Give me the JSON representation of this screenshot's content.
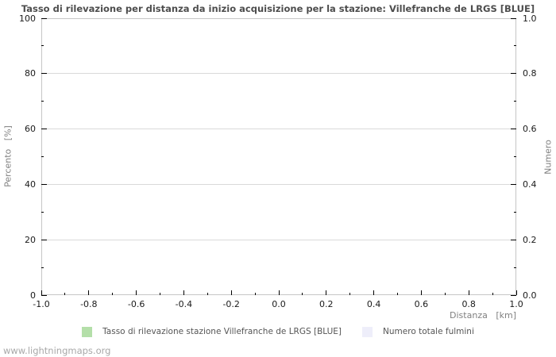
{
  "footer": {
    "watermark": "www.lightningmaps.org"
  },
  "chart_data": {
    "type": "bar",
    "title": "Tasso di rilevazione per distanza da inizio acquisizione per la stazione: Villefranche de LRGS [BLUE]",
    "xlabel": "Distanza   [km]",
    "ylabel_left": "Percento   [%]",
    "ylabel_right": "Numero",
    "x_axis": {
      "min": -1.0,
      "max": 1.0,
      "major_step": 0.2,
      "minor_step": 0.1,
      "tick_labels": [
        "-1.0",
        "-0.8",
        "-0.6",
        "-0.4",
        "-0.2",
        "0.0",
        "0.2",
        "0.4",
        "0.6",
        "0.8",
        "1.0"
      ]
    },
    "y_axis_left": {
      "min": 0,
      "max": 100,
      "major_step": 20,
      "minor_step": 10,
      "tick_labels": [
        "0",
        "20",
        "40",
        "60",
        "80",
        "100"
      ]
    },
    "y_axis_right": {
      "min": 0.0,
      "max": 1.0,
      "major_step": 0.2,
      "minor_step": 0.1,
      "tick_labels": [
        "0.0",
        "0.2",
        "0.4",
        "0.6",
        "0.8",
        "1.0"
      ]
    },
    "grid": "horizontal-major-only",
    "legend_position": "bottom-center",
    "series": [
      {
        "name": "Tasso di rilevazione stazione Villefranche de LRGS [BLUE]",
        "color": "#b4dfa9",
        "values": []
      },
      {
        "name": "Numero totale fulmini",
        "color": "#eeeefa",
        "values": []
      }
    ],
    "colors": {
      "plot_border": "#c6c6c6",
      "gridline": "#d9d9d9",
      "tick": "#000000",
      "title_text": "#4d4d4d",
      "axis_label_text": "#808080",
      "footer_text": "#a8a8a8"
    }
  }
}
